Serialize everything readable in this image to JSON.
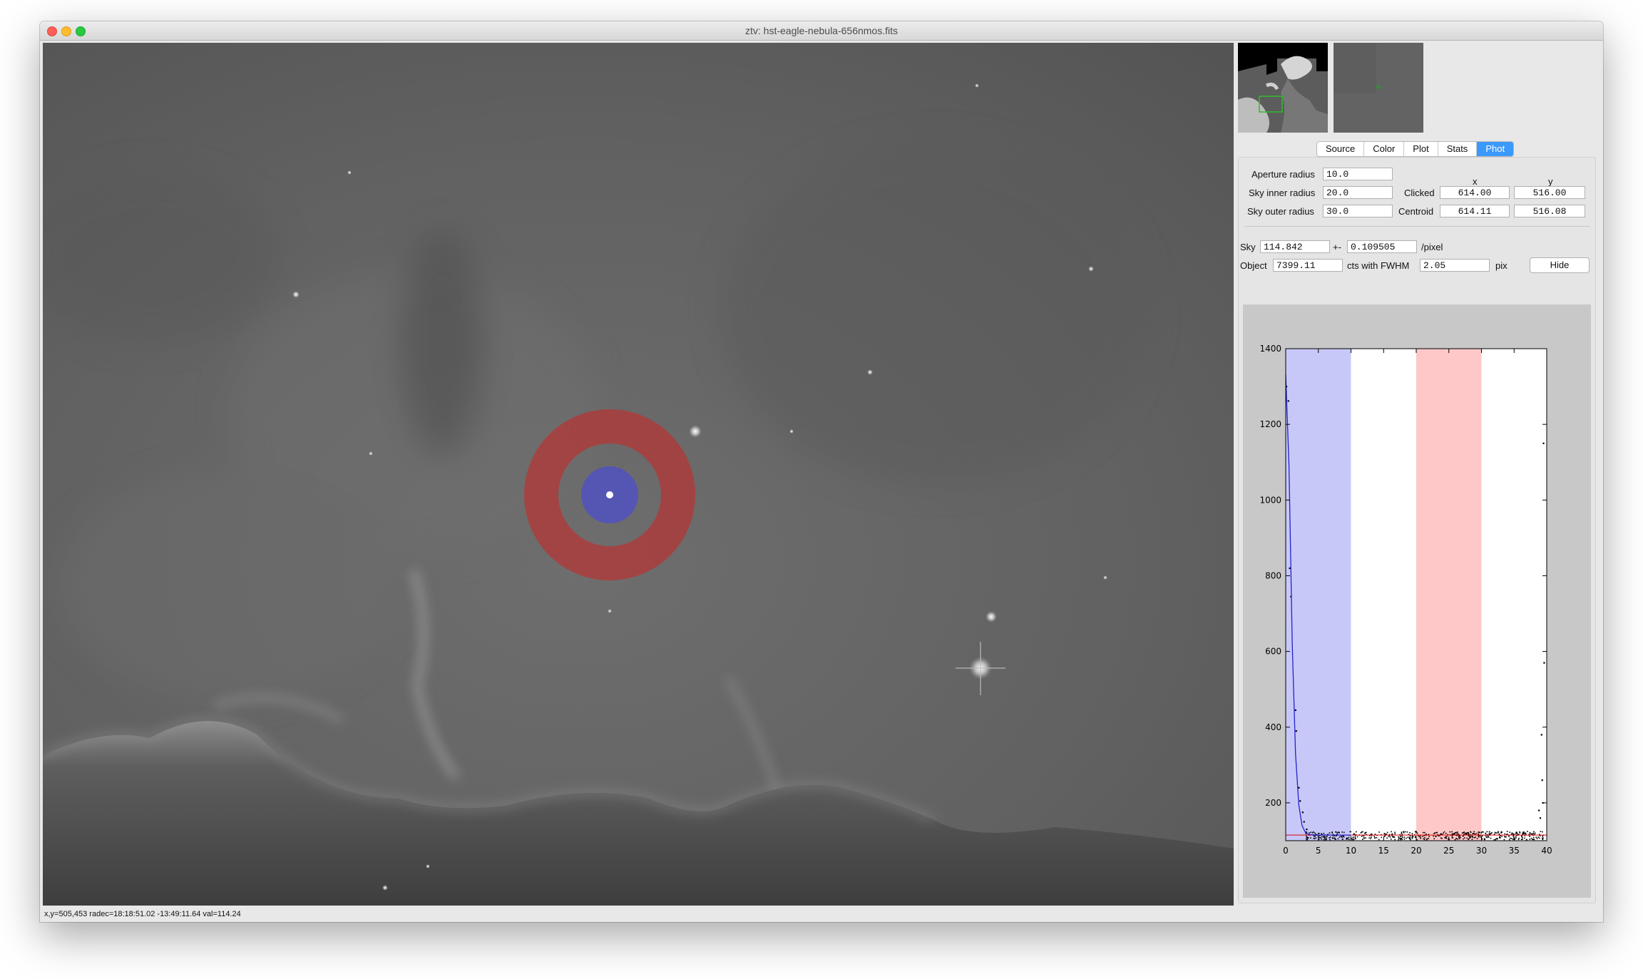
{
  "window": {
    "title": "ztv: hst-eagle-nebula-656nmos.fits"
  },
  "status_bar": {
    "text": "x,y=505,453  radec=18:18:51.02 -13:49:11.64  val=114.24"
  },
  "tabs": [
    {
      "label": "Source",
      "active": false
    },
    {
      "label": "Color",
      "active": false
    },
    {
      "label": "Plot",
      "active": false
    },
    {
      "label": "Stats",
      "active": false
    },
    {
      "label": "Phot",
      "active": true
    }
  ],
  "phot": {
    "aperture_label": "Aperture radius",
    "aperture_value": "10.0",
    "sky_inner_label": "Sky inner radius",
    "sky_inner_value": "20.0",
    "sky_outer_label": "Sky outer radius",
    "sky_outer_value": "30.0",
    "col_x": "x",
    "col_y": "y",
    "clicked_label": "Clicked",
    "clicked_x": "614.00",
    "clicked_y": "516.00",
    "centroid_label": "Centroid",
    "centroid_x": "614.11",
    "centroid_y": "516.08",
    "sky_label": "Sky",
    "sky_value": "114.842",
    "pm_label": "+-",
    "sky_err": "0.109505",
    "per_pixel": "/pixel",
    "object_label": "Object",
    "object_value": "7399.11",
    "cts_label": "cts with FWHM",
    "fwhm_value": "2.05",
    "pix_label": "pix",
    "hide_label": "Hide"
  },
  "colors": {
    "aperture": "#6b6bff",
    "sky_annulus": "#ff6b6b",
    "active_tab": "#3b99fc",
    "profile_fit": "#2222cc",
    "sky_line": "#dd0000"
  },
  "chart_data": {
    "type": "scatter",
    "title": "",
    "xlabel": "",
    "ylabel": "",
    "xlim": [
      0,
      40
    ],
    "ylim": [
      100,
      1400
    ],
    "x_ticks": [
      0,
      5,
      10,
      15,
      20,
      25,
      30,
      35,
      40
    ],
    "y_ticks": [
      200,
      400,
      600,
      800,
      1000,
      1200,
      1400
    ],
    "grid": false,
    "shaded_regions": [
      {
        "x": [
          0,
          10
        ],
        "color": "#c8c8f8"
      },
      {
        "x": [
          20,
          30
        ],
        "color": "#ffc8c8"
      }
    ],
    "sky_level": 114.842,
    "fit_line": {
      "x": [
        0,
        0.5,
        1,
        1.5,
        2,
        2.5,
        3,
        3.5,
        4,
        5,
        6,
        8,
        10
      ],
      "y": [
        1330,
        1090,
        620,
        330,
        195,
        140,
        122,
        117,
        115.5,
        115,
        114.9,
        114.85,
        114.84
      ]
    },
    "points_highlighted": [
      {
        "x": 0.1,
        "y": 1300
      },
      {
        "x": 0.4,
        "y": 1262
      },
      {
        "x": 0.6,
        "y": 820
      },
      {
        "x": 0.8,
        "y": 745
      },
      {
        "x": 1.5,
        "y": 445
      },
      {
        "x": 1.6,
        "y": 390
      },
      {
        "x": 2.0,
        "y": 240
      },
      {
        "x": 2.2,
        "y": 205
      },
      {
        "x": 2.6,
        "y": 175
      },
      {
        "x": 2.8,
        "y": 150
      },
      {
        "x": 3.2,
        "y": 130
      },
      {
        "x": 39.2,
        "y": 380
      },
      {
        "x": 39.5,
        "y": 1150
      },
      {
        "x": 39.6,
        "y": 570
      },
      {
        "x": 39.3,
        "y": 260
      },
      {
        "x": 38.8,
        "y": 180
      },
      {
        "x": 39.0,
        "y": 160
      },
      {
        "x": 39.4,
        "y": 200
      }
    ]
  }
}
